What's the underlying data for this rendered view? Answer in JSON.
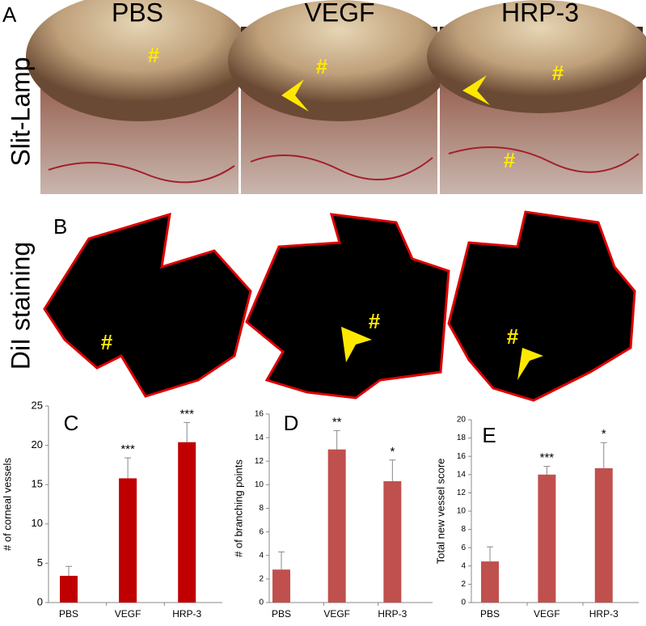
{
  "figure": {
    "panel_labels": [
      "A",
      "B"
    ],
    "row_labels": [
      "Slit-Lamp",
      "DiI staining"
    ],
    "columns": [
      "PBS",
      "VEGF",
      "HRP-3"
    ],
    "image_marks": [
      "#",
      "#",
      "#",
      "#",
      "#",
      "#",
      "#"
    ]
  },
  "chart_data": [
    {
      "type": "bar",
      "panel_label": "C",
      "y_label": "# of corneal vessels",
      "categories": [
        "PBS",
        "VEGF",
        "HRP-3"
      ],
      "values": [
        3.4,
        15.8,
        20.4
      ],
      "errors": [
        1.2,
        2.6,
        2.5
      ],
      "annotations": [
        null,
        "***",
        "***"
      ],
      "color": "#c00000",
      "ylim": [
        0,
        25
      ],
      "yticks": [
        0,
        5,
        10,
        15,
        20,
        25
      ]
    },
    {
      "type": "bar",
      "panel_label": "D",
      "y_label": "# of branching points",
      "categories": [
        "PBS",
        "VEGF",
        "HRP-3"
      ],
      "values": [
        2.8,
        13.0,
        10.3
      ],
      "errors": [
        1.5,
        1.6,
        1.8
      ],
      "annotations": [
        null,
        "**",
        "*"
      ],
      "color": "#c0504d",
      "ylim": [
        0,
        16
      ],
      "yticks": [
        0,
        2,
        4,
        6,
        8,
        10,
        12,
        14,
        16
      ]
    },
    {
      "type": "bar",
      "panel_label": "E",
      "y_label": "Total new vessel score",
      "categories": [
        "PBS",
        "VEGF",
        "HRP-3"
      ],
      "values": [
        4.5,
        14.0,
        14.7
      ],
      "errors": [
        1.6,
        0.9,
        2.8
      ],
      "annotations": [
        null,
        "***",
        "*"
      ],
      "color": "#c0504d",
      "ylim": [
        0,
        20
      ],
      "yticks": [
        0,
        2,
        4,
        6,
        8,
        10,
        12,
        14,
        16,
        18,
        20
      ]
    }
  ]
}
